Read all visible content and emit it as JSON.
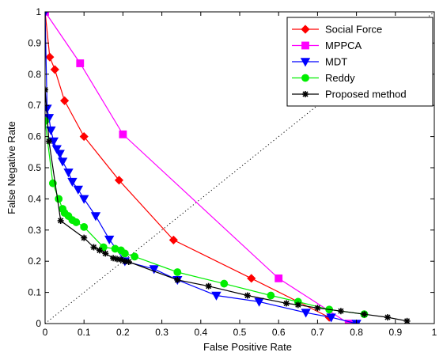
{
  "chart_data": {
    "type": "line",
    "xlabel": "False Positive Rate",
    "ylabel": "False Negative Rate",
    "xlim": [
      0,
      1
    ],
    "ylim": [
      0,
      1
    ],
    "xticks": [
      "0",
      "0.1",
      "0.2",
      "0.3",
      "0.4",
      "0.5",
      "0.6",
      "0.7",
      "0.8",
      "0.9",
      "1"
    ],
    "yticks": [
      "0",
      "0.1",
      "0.2",
      "0.3",
      "0.4",
      "0.5",
      "0.6",
      "0.7",
      "0.8",
      "0.9",
      "1"
    ],
    "grid": false,
    "legend_position": "top-right",
    "series": [
      {
        "name": "Social Force",
        "color": "#ff0000",
        "marker": "diamond",
        "x": [
          0.0,
          0.012,
          0.025,
          0.05,
          0.1,
          0.19,
          0.33,
          0.53,
          0.73
        ],
        "y": [
          1.0,
          0.855,
          0.815,
          0.715,
          0.6,
          0.46,
          0.268,
          0.145,
          0.02
        ]
      },
      {
        "name": "MPPCA",
        "color": "#ff00ff",
        "marker": "square",
        "x": [
          0.0,
          0.09,
          0.2,
          0.6,
          0.78
        ],
        "y": [
          1.0,
          0.835,
          0.607,
          0.145,
          0.0
        ]
      },
      {
        "name": "MDT",
        "color": "#0000ff",
        "marker": "triangle-down",
        "x": [
          0.0,
          0.005,
          0.01,
          0.015,
          0.022,
          0.03,
          0.038,
          0.045,
          0.06,
          0.07,
          0.085,
          0.1,
          0.13,
          0.165,
          0.205,
          0.28,
          0.34,
          0.44,
          0.55,
          0.67,
          0.735,
          0.8
        ],
        "y": [
          1.0,
          0.69,
          0.66,
          0.62,
          0.585,
          0.56,
          0.545,
          0.52,
          0.485,
          0.455,
          0.43,
          0.4,
          0.345,
          0.27,
          0.2,
          0.175,
          0.14,
          0.09,
          0.07,
          0.035,
          0.02,
          0.0
        ]
      },
      {
        "name": "Reddy",
        "color": "#00ee00",
        "marker": "circle",
        "x": [
          0.0,
          0.02,
          0.035,
          0.045,
          0.05,
          0.06,
          0.07,
          0.08,
          0.1,
          0.15,
          0.18,
          0.195,
          0.205,
          0.23,
          0.34,
          0.46,
          0.58,
          0.65,
          0.73,
          0.82
        ],
        "y": [
          0.65,
          0.45,
          0.4,
          0.368,
          0.355,
          0.345,
          0.332,
          0.325,
          0.31,
          0.245,
          0.24,
          0.235,
          0.225,
          0.215,
          0.165,
          0.128,
          0.09,
          0.07,
          0.045,
          0.03
        ]
      },
      {
        "name": "Proposed method",
        "color": "#000000",
        "marker": "star",
        "x": [
          0.0,
          0.01,
          0.04,
          0.1,
          0.125,
          0.14,
          0.155,
          0.175,
          0.185,
          0.195,
          0.205,
          0.215,
          0.34,
          0.42,
          0.52,
          0.62,
          0.65,
          0.7,
          0.76,
          0.82,
          0.88,
          0.93
        ],
        "y": [
          0.75,
          0.585,
          0.33,
          0.275,
          0.245,
          0.235,
          0.225,
          0.21,
          0.207,
          0.205,
          0.2,
          0.198,
          0.14,
          0.12,
          0.09,
          0.065,
          0.06,
          0.05,
          0.04,
          0.03,
          0.02,
          0.008
        ]
      }
    ],
    "diagonal": {
      "style": "dotted",
      "from": [
        0,
        0
      ],
      "to": [
        1,
        1
      ]
    }
  }
}
